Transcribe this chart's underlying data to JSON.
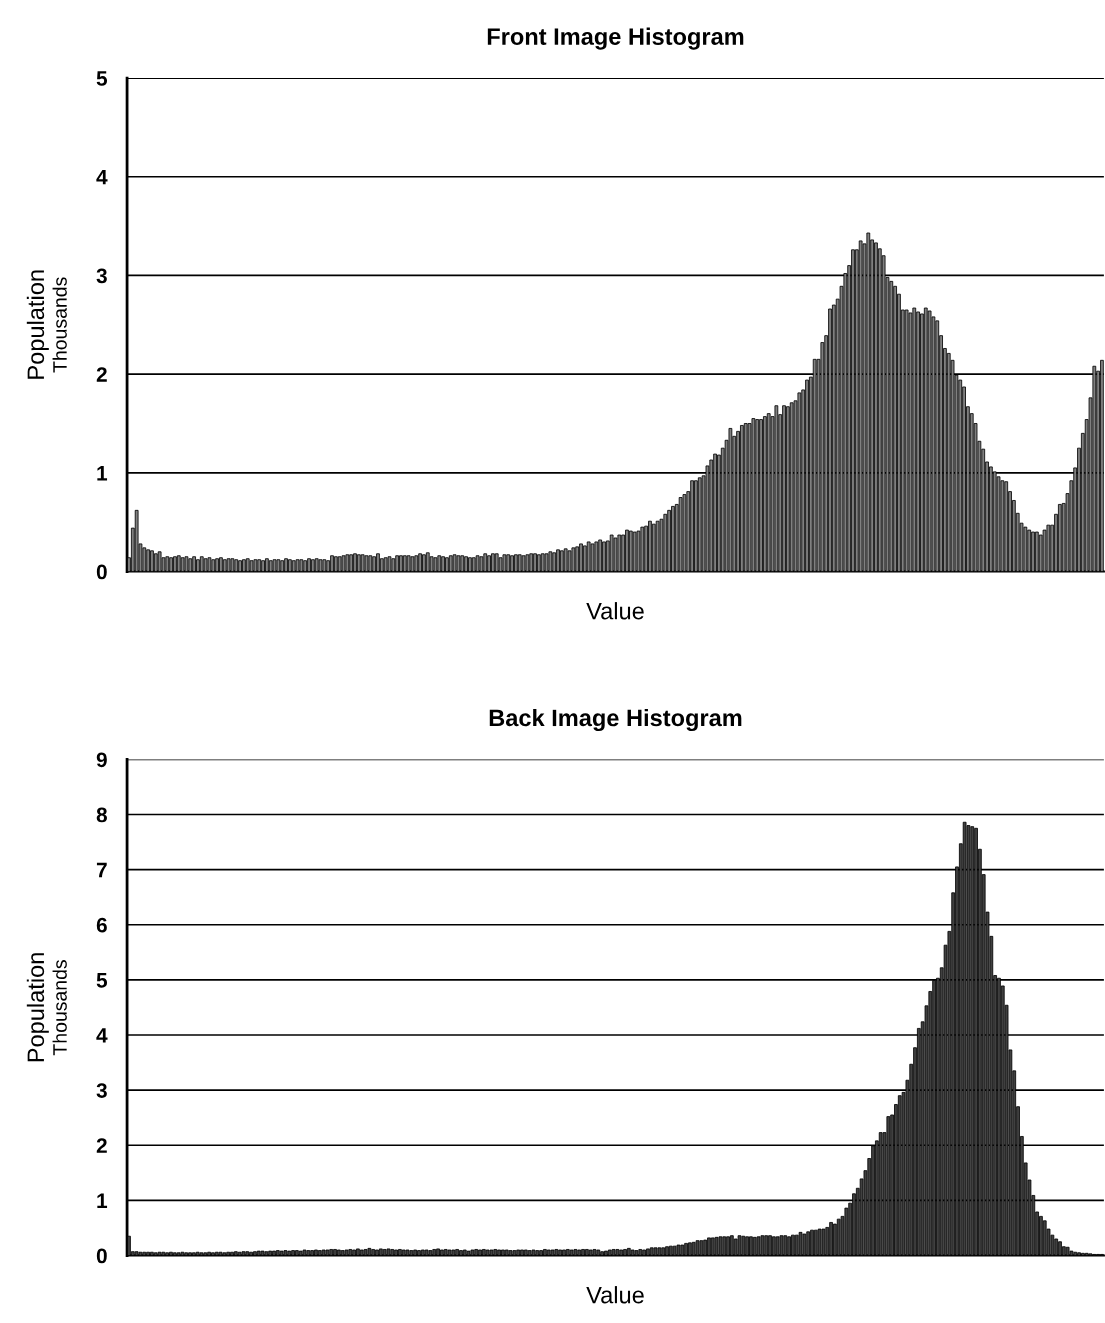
{
  "chart_data": [
    {
      "type": "bar",
      "title": "Front Image Histogram",
      "xlabel": "Value",
      "ylabel": "Population",
      "annotations": [
        "Thousands"
      ],
      "categories": [
        null,
        null,
        null,
        null,
        null,
        null,
        null,
        null,
        null,
        null,
        null,
        null,
        null,
        null,
        null,
        null,
        null,
        null,
        null,
        null,
        null,
        null,
        null,
        null,
        null,
        null,
        null,
        null,
        null,
        null,
        null,
        null,
        null,
        null,
        null,
        null,
        null,
        null,
        null,
        null,
        null,
        null,
        null,
        null,
        null,
        null,
        null,
        null,
        null,
        null,
        null,
        null,
        null,
        null,
        null,
        null,
        null,
        null,
        null,
        null,
        null,
        null,
        null,
        null,
        null,
        null,
        null,
        null,
        null,
        null,
        null,
        null,
        null,
        null,
        null,
        null,
        null,
        null,
        null,
        null,
        null,
        null,
        null,
        null,
        null,
        null,
        null,
        null,
        null,
        null,
        null,
        null,
        null,
        null,
        null,
        null,
        null,
        null,
        null,
        null,
        null,
        null,
        null,
        null,
        null,
        null,
        null,
        null,
        null,
        null,
        null,
        null,
        null,
        null,
        null,
        null,
        null,
        null,
        null,
        null,
        null,
        null,
        null,
        null,
        null,
        null,
        null,
        null,
        null,
        null,
        null,
        null,
        null,
        null,
        null,
        null,
        null,
        null,
        null,
        null,
        null,
        null,
        null,
        null,
        null,
        null,
        null,
        null,
        null,
        null,
        null,
        null,
        null,
        null,
        null,
        null,
        null,
        null,
        null,
        null,
        null,
        null,
        null,
        null,
        null,
        null,
        null,
        null,
        null,
        null,
        null,
        null,
        null,
        null,
        null,
        null,
        null,
        null,
        null,
        null,
        null,
        null,
        null,
        null,
        null,
        null,
        null,
        null,
        null,
        null,
        null,
        null,
        null,
        null,
        null,
        null,
        null,
        null,
        null,
        null,
        null,
        null,
        null,
        null,
        null,
        null,
        null,
        null,
        null,
        null,
        null,
        null,
        null,
        null,
        null,
        null,
        null,
        null,
        null,
        null,
        null,
        null,
        null,
        null,
        null,
        null,
        null,
        null,
        null,
        null,
        null,
        null,
        null,
        null,
        null,
        null,
        null,
        null,
        null,
        null,
        null,
        null,
        null,
        null,
        null,
        null,
        null,
        null,
        null,
        null,
        null,
        null,
        null,
        null,
        null
      ],
      "values": [
        0.14,
        0.44,
        0.62,
        0.28,
        0.24,
        0.22,
        0.21,
        0.18,
        0.2,
        0.14,
        0.15,
        0.14,
        0.15,
        0.16,
        0.14,
        0.15,
        0.13,
        0.15,
        0.12,
        0.15,
        0.13,
        0.14,
        0.12,
        0.13,
        0.14,
        0.12,
        0.13,
        0.13,
        0.12,
        0.11,
        0.12,
        0.13,
        0.11,
        0.12,
        0.12,
        0.11,
        0.13,
        0.11,
        0.12,
        0.12,
        0.11,
        0.13,
        0.12,
        0.11,
        0.12,
        0.12,
        0.11,
        0.13,
        0.12,
        0.13,
        0.12,
        0.12,
        0.11,
        0.16,
        0.15,
        0.15,
        0.16,
        0.17,
        0.17,
        0.18,
        0.17,
        0.17,
        0.16,
        0.16,
        0.15,
        0.18,
        0.13,
        0.14,
        0.15,
        0.13,
        0.16,
        0.16,
        0.16,
        0.16,
        0.15,
        0.16,
        0.18,
        0.17,
        0.19,
        0.15,
        0.14,
        0.16,
        0.15,
        0.14,
        0.16,
        0.17,
        0.16,
        0.16,
        0.15,
        0.14,
        0.14,
        0.16,
        0.15,
        0.18,
        0.16,
        0.18,
        0.18,
        0.14,
        0.17,
        0.17,
        0.16,
        0.17,
        0.17,
        0.16,
        0.17,
        0.18,
        0.18,
        0.17,
        0.18,
        0.18,
        0.2,
        0.19,
        0.22,
        0.21,
        0.23,
        0.21,
        0.24,
        0.25,
        0.28,
        0.26,
        0.3,
        0.28,
        0.3,
        0.32,
        0.3,
        0.31,
        0.37,
        0.34,
        0.37,
        0.37,
        0.42,
        0.41,
        0.4,
        0.41,
        0.45,
        0.46,
        0.51,
        0.48,
        0.51,
        0.53,
        0.58,
        0.62,
        0.66,
        0.68,
        0.75,
        0.78,
        0.81,
        0.92,
        0.92,
        0.95,
        0.97,
        1.07,
        1.13,
        1.19,
        1.18,
        1.25,
        1.33,
        1.45,
        1.37,
        1.42,
        1.48,
        1.5,
        1.5,
        1.55,
        1.54,
        1.54,
        1.57,
        1.6,
        1.57,
        1.68,
        1.59,
        1.68,
        1.67,
        1.71,
        1.73,
        1.81,
        1.84,
        1.94,
        1.97,
        2.15,
        2.15,
        2.32,
        2.39,
        2.66,
        2.7,
        2.76,
        2.89,
        3.02,
        3.1,
        3.26,
        3.26,
        3.35,
        3.32,
        3.43,
        3.36,
        3.33,
        3.27,
        3.2,
        2.98,
        2.94,
        2.89,
        2.81,
        2.65,
        2.65,
        2.62,
        2.67,
        2.63,
        2.61,
        2.67,
        2.64,
        2.58,
        2.54,
        2.39,
        2.26,
        2.21,
        2.14,
        1.99,
        1.94,
        1.87,
        1.67,
        1.6,
        1.5,
        1.32,
        1.24,
        1.11,
        1.06,
        1.01,
        0.96,
        0.92,
        0.91,
        0.81,
        0.72,
        0.59,
        0.49,
        0.45,
        0.42,
        0.4,
        0.4,
        0.37,
        0.42,
        0.47,
        0.47,
        0.58,
        0.68,
        0.69,
        0.79,
        0.92,
        1.05,
        1.25,
        1.4,
        1.54,
        1.76,
        2.08,
        2.03,
        2.14
      ],
      "color": "#808080",
      "ylim": [
        0,
        5
      ],
      "yticks": [
        0,
        1,
        2,
        3,
        4,
        5
      ],
      "grid": "y",
      "tick_labels": "y"
    },
    {
      "type": "bar",
      "title": "Back Image Histogram",
      "xlabel": "Value",
      "ylabel": "Population",
      "annotations": [
        "Thousands"
      ],
      "categories": [
        null,
        null,
        null,
        null,
        null,
        null,
        null,
        null,
        null,
        null,
        null,
        null,
        null,
        null,
        null,
        null,
        null,
        null,
        null,
        null,
        null,
        null,
        null,
        null,
        null,
        null,
        null,
        null,
        null,
        null,
        null,
        null,
        null,
        null,
        null,
        null,
        null,
        null,
        null,
        null,
        null,
        null,
        null,
        null,
        null,
        null,
        null,
        null,
        null,
        null,
        null,
        null,
        null,
        null,
        null,
        null,
        null,
        null,
        null,
        null,
        null,
        null,
        null,
        null,
        null,
        null,
        null,
        null,
        null,
        null,
        null,
        null,
        null,
        null,
        null,
        null,
        null,
        null,
        null,
        null,
        null,
        null,
        null,
        null,
        null,
        null,
        null,
        null,
        null,
        null,
        null,
        null,
        null,
        null,
        null,
        null,
        null,
        null,
        null,
        null,
        null,
        null,
        null,
        null,
        null,
        null,
        null,
        null,
        null,
        null,
        null,
        null,
        null,
        null,
        null,
        null,
        null,
        null,
        null,
        null,
        null,
        null,
        null,
        null,
        null,
        null,
        null,
        null,
        null,
        null,
        null,
        null,
        null,
        null,
        null,
        null,
        null,
        null,
        null,
        null,
        null,
        null,
        null,
        null,
        null,
        null,
        null,
        null,
        null,
        null,
        null,
        null,
        null,
        null,
        null,
        null,
        null,
        null,
        null,
        null,
        null,
        null,
        null,
        null,
        null,
        null,
        null,
        null,
        null,
        null,
        null,
        null,
        null,
        null,
        null,
        null,
        null,
        null,
        null,
        null,
        null,
        null,
        null,
        null,
        null,
        null,
        null,
        null,
        null,
        null,
        null,
        null,
        null,
        null,
        null,
        null,
        null,
        null,
        null,
        null,
        null,
        null,
        null,
        null,
        null,
        null,
        null,
        null,
        null,
        null,
        null,
        null,
        null,
        null,
        null,
        null,
        null,
        null,
        null,
        null,
        null,
        null,
        null,
        null,
        null,
        null,
        null,
        null,
        null,
        null,
        null,
        null,
        null,
        null,
        null,
        null,
        null,
        null,
        null,
        null,
        null,
        null,
        null,
        null,
        null,
        null,
        null,
        null,
        null,
        null,
        null,
        null,
        null,
        null,
        null,
        null
      ],
      "values": [
        0.35,
        0.07,
        0.07,
        0.06,
        0.06,
        0.06,
        0.06,
        0.05,
        0.06,
        0.06,
        0.05,
        0.06,
        0.05,
        0.05,
        0.06,
        0.05,
        0.05,
        0.05,
        0.06,
        0.05,
        0.05,
        0.06,
        0.05,
        0.06,
        0.06,
        0.05,
        0.06,
        0.06,
        0.07,
        0.06,
        0.07,
        0.07,
        0.06,
        0.07,
        0.08,
        0.08,
        0.07,
        0.08,
        0.08,
        0.09,
        0.08,
        0.09,
        0.08,
        0.09,
        0.09,
        0.08,
        0.1,
        0.09,
        0.09,
        0.1,
        0.09,
        0.1,
        0.1,
        0.11,
        0.11,
        0.1,
        0.09,
        0.1,
        0.11,
        0.1,
        0.12,
        0.1,
        0.11,
        0.13,
        0.11,
        0.1,
        0.12,
        0.11,
        0.12,
        0.11,
        0.1,
        0.11,
        0.1,
        0.1,
        0.09,
        0.1,
        0.09,
        0.1,
        0.1,
        0.09,
        0.11,
        0.12,
        0.1,
        0.11,
        0.1,
        0.1,
        0.11,
        0.09,
        0.1,
        0.08,
        0.1,
        0.11,
        0.1,
        0.11,
        0.1,
        0.1,
        0.11,
        0.1,
        0.1,
        0.1,
        0.09,
        0.09,
        0.1,
        0.1,
        0.1,
        0.09,
        0.1,
        0.09,
        0.09,
        0.11,
        0.1,
        0.1,
        0.11,
        0.1,
        0.1,
        0.11,
        0.1,
        0.11,
        0.1,
        0.11,
        0.11,
        0.1,
        0.11,
        0.1,
        0.07,
        0.08,
        0.1,
        0.11,
        0.11,
        0.1,
        0.11,
        0.13,
        0.1,
        0.09,
        0.11,
        0.1,
        0.12,
        0.14,
        0.14,
        0.14,
        0.14,
        0.16,
        0.17,
        0.17,
        0.19,
        0.19,
        0.22,
        0.23,
        0.24,
        0.27,
        0.27,
        0.28,
        0.32,
        0.32,
        0.33,
        0.34,
        0.34,
        0.34,
        0.36,
        0.3,
        0.36,
        0.35,
        0.34,
        0.34,
        0.33,
        0.34,
        0.36,
        0.36,
        0.36,
        0.34,
        0.34,
        0.36,
        0.36,
        0.34,
        0.37,
        0.37,
        0.42,
        0.39,
        0.43,
        0.46,
        0.46,
        0.48,
        0.48,
        0.51,
        0.6,
        0.57,
        0.66,
        0.71,
        0.86,
        0.95,
        1.12,
        1.22,
        1.39,
        1.54,
        1.76,
        1.99,
        2.08,
        2.23,
        2.23,
        2.52,
        2.55,
        2.74,
        2.9,
        2.96,
        3.18,
        3.47,
        3.77,
        4.12,
        4.24,
        4.53,
        4.79,
        4.99,
        5.03,
        5.22,
        5.63,
        5.88,
        6.58,
        7.05,
        7.47,
        7.86,
        7.8,
        7.78,
        7.75,
        7.37,
        6.91,
        6.23,
        5.79,
        5.08,
        5.03,
        4.89,
        4.54,
        3.73,
        3.35,
        2.7,
        2.16,
        1.68,
        1.37,
        1.09,
        0.79,
        0.71,
        0.63,
        0.48,
        0.37,
        0.3,
        0.25,
        0.16,
        0.15,
        0.08,
        0.06,
        0.05,
        0.04,
        0.04,
        0.03,
        0.02,
        0.02,
        0.02
      ],
      "color": "#404040",
      "ylim": [
        0,
        9
      ],
      "yticks": [
        0,
        1,
        2,
        3,
        4,
        5,
        6,
        7,
        8,
        9
      ],
      "grid": "y",
      "tick_labels": "y"
    }
  ]
}
